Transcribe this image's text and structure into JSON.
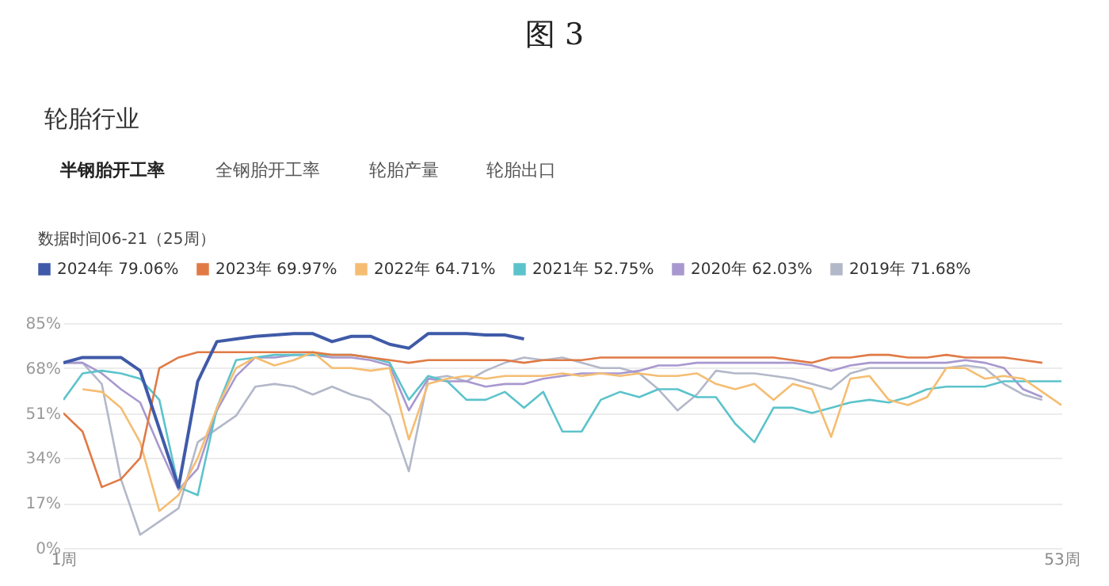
{
  "chart_data": {
    "type": "line",
    "title": "图 3",
    "subtitle": "轮胎行业",
    "annotations": [
      "半钢胎开工率",
      "全钢胎开工率",
      "轮胎产量",
      "轮胎出口"
    ],
    "legend_title": "数据时间06-21（25周）",
    "x": [
      1,
      2,
      3,
      4,
      5,
      6,
      7,
      8,
      9,
      10,
      11,
      12,
      13,
      14,
      15,
      16,
      17,
      18,
      19,
      20,
      21,
      22,
      23,
      24,
      25,
      26,
      27,
      28,
      29,
      30,
      31,
      32,
      33,
      34,
      35,
      36,
      37,
      38,
      39,
      40,
      41,
      42,
      43,
      44,
      45,
      46,
      47,
      48,
      49,
      50,
      51,
      52,
      53
    ],
    "xlim": [
      1,
      53
    ],
    "xticks": [
      {
        "value": 1,
        "label": "1周"
      },
      {
        "value": 53,
        "label": "53周"
      }
    ],
    "ylim": [
      0,
      85
    ],
    "yticks": [
      {
        "value": 0,
        "label": "0%"
      },
      {
        "value": 17,
        "label": "17%"
      },
      {
        "value": 34,
        "label": "34%"
      },
      {
        "value": 51,
        "label": "51%"
      },
      {
        "value": 68,
        "label": "68%"
      },
      {
        "value": 85,
        "label": "85%"
      }
    ],
    "grid": "y",
    "legend": "top",
    "series": [
      {
        "name": "2024年 79.06%",
        "color": "#3f5aa8",
        "values": [
          70,
          72,
          72,
          72,
          67,
          45,
          23,
          63,
          78,
          79,
          80,
          80.5,
          81,
          81,
          78,
          80,
          80,
          77,
          75.5,
          81,
          81,
          81,
          80.5,
          80.5,
          79,
          null,
          null,
          null,
          null,
          null,
          null,
          null,
          null,
          null,
          null,
          null,
          null,
          null,
          null,
          null,
          null,
          null,
          null,
          null,
          null,
          null,
          null,
          null,
          null,
          null,
          null,
          null,
          null
        ]
      },
      {
        "name": "2023年 69.97%",
        "color": "#e07a45",
        "values": [
          51,
          44,
          23,
          26,
          34,
          68,
          72,
          74,
          74,
          74,
          74,
          74,
          74,
          74,
          73,
          73,
          72,
          71,
          70,
          71,
          71,
          71,
          71,
          71,
          70,
          71,
          71,
          71,
          72,
          72,
          72,
          72,
          72,
          72,
          72,
          72,
          72,
          72,
          71,
          70,
          72,
          72,
          73,
          73,
          72,
          72,
          73,
          72,
          72,
          72,
          71,
          70,
          null
        ]
      },
      {
        "name": "2022年 64.71%",
        "color": "#f5bd72",
        "values": [
          null,
          60,
          59,
          53,
          40,
          14,
          20,
          34,
          53,
          68,
          72,
          69,
          71,
          74,
          68,
          68,
          67,
          68,
          41,
          62,
          64,
          65,
          64,
          65,
          65,
          65,
          66,
          65,
          66,
          65,
          66,
          65,
          65,
          66,
          62,
          60,
          62,
          56,
          62,
          60,
          42,
          64,
          65,
          56,
          54,
          57,
          68,
          68,
          64,
          65,
          64,
          59,
          54
        ]
      },
      {
        "name": "2021年 52.75%",
        "color": "#5cc3cb",
        "values": [
          56,
          66,
          67,
          66,
          64,
          56,
          23,
          20,
          53,
          71,
          72,
          73,
          73,
          73,
          73,
          73,
          72,
          70,
          56,
          65,
          63,
          56,
          56,
          59,
          53,
          59,
          44,
          44,
          56,
          59,
          57,
          60,
          60,
          57,
          57,
          47,
          40,
          53,
          53,
          51,
          53,
          55,
          56,
          55,
          57,
          60,
          61,
          61,
          61,
          63,
          63,
          63,
          63
        ]
      },
      {
        "name": "2020年 62.03%",
        "color": "#a898cf",
        "values": [
          70,
          70,
          66,
          60,
          55,
          38,
          22,
          30,
          52,
          65,
          72,
          72,
          73,
          73,
          72,
          72,
          71,
          69,
          52,
          64,
          63,
          63,
          61,
          62,
          62,
          64,
          65,
          66,
          66,
          66,
          67,
          69,
          69,
          70,
          70,
          70,
          70,
          70,
          70,
          69,
          67,
          69,
          70,
          70,
          70,
          70,
          70,
          71,
          70,
          68,
          60,
          57,
          null
        ]
      },
      {
        "name": "2019年 71.68%",
        "color": "#b3b8c9",
        "values": [
          70,
          70,
          62,
          26,
          5,
          10,
          15,
          40,
          45,
          50,
          61,
          62,
          61,
          58,
          61,
          58,
          56,
          50,
          29,
          64,
          65,
          63,
          67,
          70,
          72,
          71,
          72,
          70,
          68,
          68,
          66,
          60,
          52,
          58,
          67,
          66,
          66,
          65,
          64,
          62,
          60,
          66,
          68,
          68,
          68,
          68,
          68,
          69,
          68,
          62,
          58,
          56,
          null
        ]
      }
    ]
  }
}
